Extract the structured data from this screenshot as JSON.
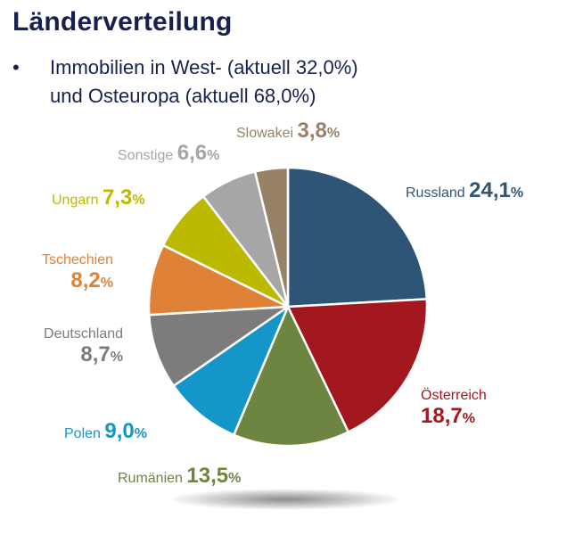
{
  "title": "Länderverteilung",
  "bullet": {
    "symbol": "•",
    "line1": "Immobilien in West- (aktuell 32,0%)",
    "line2": "und Osteuropa (aktuell 68,0%)"
  },
  "chart_data": {
    "type": "pie",
    "start_angle_deg": 0,
    "direction": "clockwise",
    "slices": [
      {
        "label": "Russland",
        "value": 24.1,
        "display": "24,1",
        "color": "#2e5576"
      },
      {
        "label": "Österreich",
        "value": 18.7,
        "display": "18,7",
        "color": "#a3171f"
      },
      {
        "label": "Rumänien",
        "value": 13.5,
        "display": "13,5",
        "color": "#6e8441"
      },
      {
        "label": "Polen",
        "value": 9.0,
        "display": "9,0",
        "color": "#1596c9"
      },
      {
        "label": "Deutschland",
        "value": 8.7,
        "display": "8,7",
        "color": "#7c7c7c"
      },
      {
        "label": "Tschechien",
        "value": 8.2,
        "display": "8,2",
        "color": "#df8238"
      },
      {
        "label": "Ungarn",
        "value": 7.3,
        "display": "7,3",
        "color": "#bcba00"
      },
      {
        "label": "Sonstige",
        "value": 6.6,
        "display": "6,6",
        "color": "#a6a6a6"
      },
      {
        "label": "Slowakei",
        "value": 3.8,
        "display": "3,8",
        "color": "#988266"
      }
    ],
    "percent_sign": "%"
  }
}
